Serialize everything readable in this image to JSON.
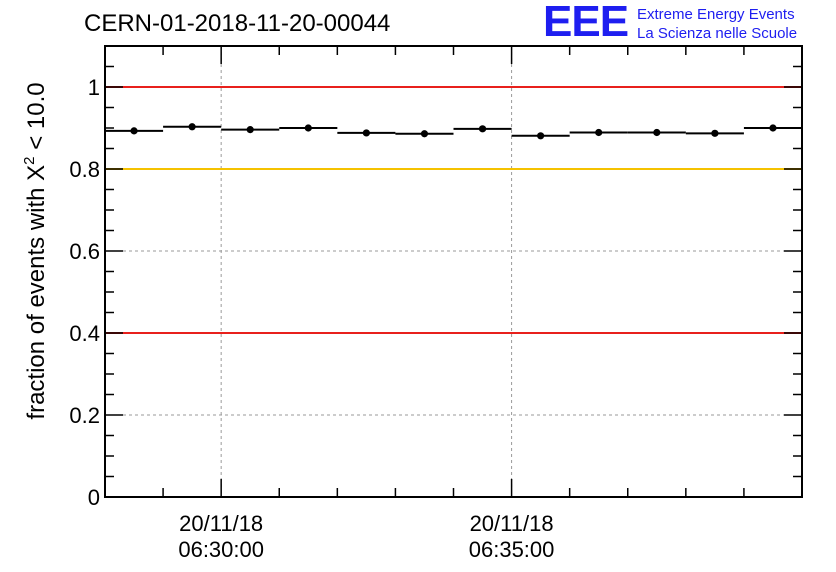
{
  "header": {
    "title": "CERN-01-2018-11-20-00044"
  },
  "logo": {
    "mark": "EEE",
    "line1": "Extreme Energy Events",
    "line2": "La Scienza nelle Scuole",
    "color": "#1e1ef0"
  },
  "chart_data": {
    "type": "scatter",
    "title": "CERN-01-2018-11-20-00044",
    "ylabel_prefix": "fraction of events with X",
    "ylabel_sup": "2",
    "ylabel_suffix": " < 10.0",
    "xlabel": "",
    "ylim": [
      0,
      1.1
    ],
    "yticks": [
      0,
      0.2,
      0.4,
      0.6,
      0.8,
      1
    ],
    "ytick_labels": [
      "0",
      "0.2",
      "0.4",
      "0.6",
      "0.8",
      "1"
    ],
    "xlim": [
      "20/11/18 06:28:00",
      "20/11/18 06:40:00"
    ],
    "xtick_labels": [
      {
        "time": "20/11/18 06:30:00",
        "line1": "20/11/18",
        "line2": "06:30:00"
      },
      {
        "time": "20/11/18 06:35:00",
        "line1": "20/11/18",
        "line2": "06:35:00"
      }
    ],
    "grid": true,
    "reference_lines": [
      {
        "y": 1.0,
        "color": "#e8201c"
      },
      {
        "y": 0.8,
        "color": "#f5c200"
      },
      {
        "y": 0.4,
        "color": "#e8201c"
      }
    ],
    "points": [
      {
        "x": "06:28:30",
        "y": 0.893
      },
      {
        "x": "06:29:30",
        "y": 0.903
      },
      {
        "x": "06:30:30",
        "y": 0.896
      },
      {
        "x": "06:31:30",
        "y": 0.9
      },
      {
        "x": "06:32:30",
        "y": 0.888
      },
      {
        "x": "06:33:30",
        "y": 0.886
      },
      {
        "x": "06:34:30",
        "y": 0.898
      },
      {
        "x": "06:35:30",
        "y": 0.881
      },
      {
        "x": "06:36:30",
        "y": 0.889
      },
      {
        "x": "06:37:30",
        "y": 0.889
      },
      {
        "x": "06:38:30",
        "y": 0.887
      },
      {
        "x": "06:39:30",
        "y": 0.9
      }
    ],
    "bin_width_minutes": 1
  }
}
